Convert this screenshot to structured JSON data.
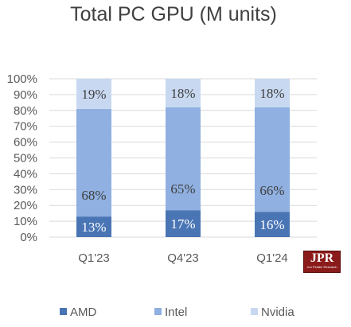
{
  "chart_data": {
    "type": "bar",
    "stacked": true,
    "title": "Total PC GPU (M units)",
    "categories": [
      "Q1'23",
      "Q4'23",
      "Q1'24"
    ],
    "y_ticks": [
      "0%",
      "10%",
      "20%",
      "30%",
      "40%",
      "50%",
      "60%",
      "70%",
      "80%",
      "90%",
      "100%"
    ],
    "ylim": [
      0,
      100
    ],
    "grid": true,
    "legend_position": "bottom",
    "series": [
      {
        "name": "AMD",
        "color": "#4a75b5",
        "values": [
          13,
          17,
          16
        ],
        "labels": [
          "13%",
          "17%",
          "16%"
        ]
      },
      {
        "name": "Intel",
        "color": "#8fb0e0",
        "values": [
          68,
          65,
          66
        ],
        "labels": [
          "68%",
          "65%",
          "66%"
        ]
      },
      {
        "name": "Nvidia",
        "color": "#c8d8f0",
        "values": [
          19,
          18,
          18
        ],
        "labels": [
          "19%",
          "18%",
          "18%"
        ]
      }
    ]
  },
  "logo": {
    "name": "jpr-logo",
    "text": "JPR",
    "subtext": "Jon Peddie Research"
  }
}
